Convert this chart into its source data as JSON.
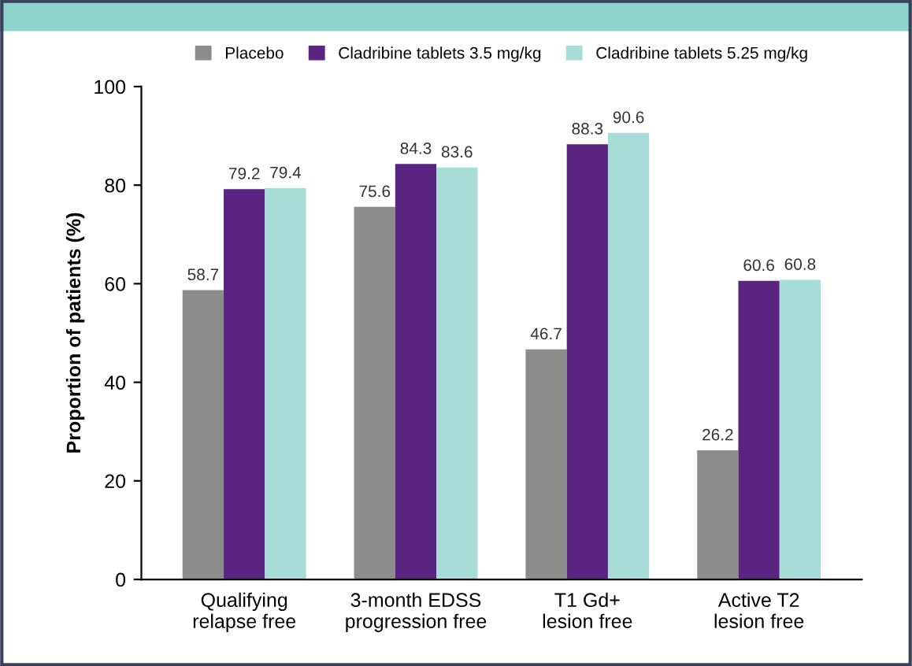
{
  "chart_data": {
    "type": "bar",
    "categories": [
      "Qualifying\nrelapse free",
      "3-month EDSS\nprogression free",
      "T1 Gd+\nlesion free",
      "Active T2\nlesion free"
    ],
    "series": [
      {
        "name": "Placebo",
        "color": "#8c8c8c",
        "values": [
          58.7,
          75.6,
          46.7,
          26.2
        ]
      },
      {
        "name": "Cladribine tablets 3.5 mg/kg",
        "color": "#5a2480",
        "values": [
          79.2,
          84.3,
          88.3,
          60.6
        ]
      },
      {
        "name": "Cladribine tablets 5.25 mg/kg",
        "color": "#a8dcd8",
        "values": [
          79.4,
          83.6,
          90.6,
          60.8
        ]
      }
    ],
    "ylabel": "Proportion of patients (%)",
    "ylim": [
      0,
      100
    ],
    "yticks": [
      0,
      20,
      40,
      60,
      80,
      100
    ],
    "grid": false,
    "legend": "top",
    "data_labels": true
  }
}
